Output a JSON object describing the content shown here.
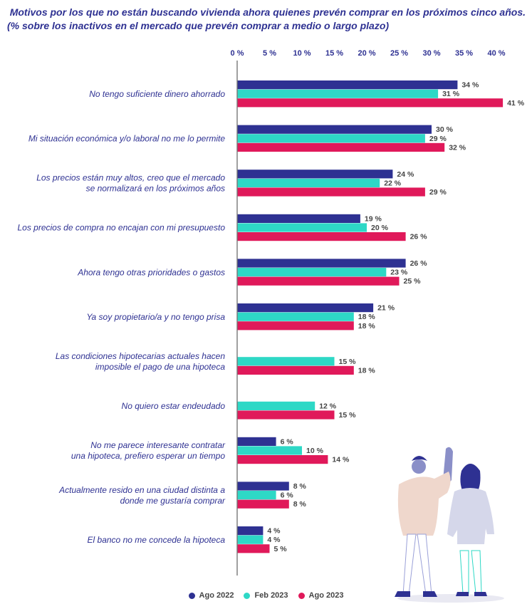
{
  "title": {
    "line1": "Motivos por los que no están buscando vivienda ahora quienes prevén comprar en los próximos cinco años.",
    "line2": "(% sobre los inactivos en el mercado que prevén comprar a medio o largo plazo)"
  },
  "colors": {
    "ago2022": "#2e3192",
    "feb2023": "#2ed8c6",
    "ago2023": "#e0195a",
    "axis": "#777777",
    "text": "#2e3192"
  },
  "chart_data": {
    "type": "bar",
    "orientation": "horizontal",
    "title": "Motivos por los que no están buscando vivienda ahora quienes prevén comprar en los próximos cinco años. (% sobre los inactivos en el mercado que prevén comprar a medio o largo plazo)",
    "xlim": [
      0,
      40
    ],
    "xticks": [
      "0 %",
      "5 %",
      "10 %",
      "15 %",
      "20 %",
      "25 %",
      "30 %",
      "35 %",
      "40 %"
    ],
    "xtick_values": [
      0,
      5,
      10,
      15,
      20,
      25,
      30,
      35,
      40
    ],
    "legend_position": "bottom",
    "categories": [
      [
        "No tengo suficiente dinero ahorrado"
      ],
      [
        "Mi situación económica y/o laboral no me lo permite"
      ],
      [
        "Los precios están muy altos, creo que el mercado",
        "se normalizará en los próximos años"
      ],
      [
        "Los precios de compra no encajan con mi presupuesto"
      ],
      [
        "Ahora tengo otras prioridades o gastos"
      ],
      [
        "Ya soy propietario/a y no tengo prisa"
      ],
      [
        "Las condiciones hipotecarias actuales hacen",
        "imposible el pago de una hipoteca"
      ],
      [
        "No quiero estar endeudado"
      ],
      [
        "No me parece interesante contratar",
        "una hipoteca, prefiero esperar un tiempo"
      ],
      [
        "Actualmente resido en una ciudad distinta a",
        "donde me gustaría comprar"
      ],
      [
        "El banco no me concede la hipoteca"
      ]
    ],
    "series": [
      {
        "name": "Ago 2022",
        "color": "#2e3192",
        "values": [
          34,
          30,
          24,
          19,
          26,
          21,
          null,
          null,
          6,
          8,
          4
        ]
      },
      {
        "name": "Feb 2023",
        "color": "#2ed8c6",
        "values": [
          31,
          29,
          22,
          20,
          23,
          18,
          15,
          12,
          10,
          6,
          4
        ]
      },
      {
        "name": "Ago 2023",
        "color": "#e0195a",
        "values": [
          41,
          32,
          29,
          26,
          25,
          18,
          18,
          15,
          14,
          8,
          5
        ]
      }
    ]
  }
}
